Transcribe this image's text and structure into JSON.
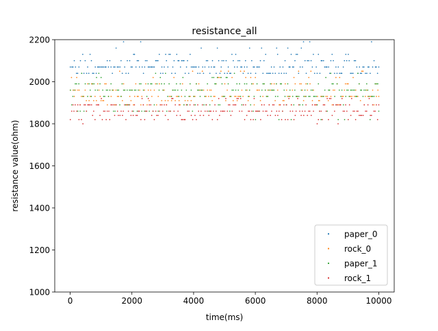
{
  "chart_data": {
    "type": "scatter",
    "title": "resistance_all",
    "xlabel": "time(ms)",
    "ylabel": "resistance value(ohm)",
    "xlim": [
      -500,
      10500
    ],
    "ylim": [
      1000,
      2200
    ],
    "xticks": [
      0,
      2000,
      4000,
      6000,
      8000,
      10000
    ],
    "yticks": [
      1000,
      1200,
      1400,
      1600,
      1800,
      2000,
      2200
    ],
    "grid": false,
    "legend_position": "bottom-right",
    "series": [
      {
        "name": "paper_0",
        "color": "#1f77b4",
        "levels": [
          2190,
          2160,
          2130,
          2100,
          2070,
          2040
        ],
        "weights": [
          2,
          4,
          10,
          22,
          34,
          28
        ],
        "x_range": [
          0,
          10000
        ]
      },
      {
        "name": "rock_0",
        "color": "#ff7f0e",
        "levels": [
          2050,
          2020,
          1990,
          1960,
          1930,
          1910,
          1890
        ],
        "weights": [
          3,
          6,
          14,
          24,
          24,
          16,
          10
        ],
        "x_range": [
          0,
          10000
        ]
      },
      {
        "name": "paper_1",
        "color": "#2ca02c",
        "levels": [
          2040,
          2020,
          1990,
          1960,
          1930,
          1890,
          1860,
          1820
        ],
        "weights": [
          3,
          5,
          20,
          34,
          18,
          10,
          8,
          2
        ],
        "x_range": [
          0,
          10000
        ]
      },
      {
        "name": "rock_1",
        "color": "#d62728",
        "levels": [
          1920,
          1890,
          1860,
          1840,
          1820,
          1800
        ],
        "weights": [
          8,
          24,
          34,
          20,
          12,
          2
        ],
        "x_range": [
          0,
          10000
        ]
      }
    ]
  }
}
